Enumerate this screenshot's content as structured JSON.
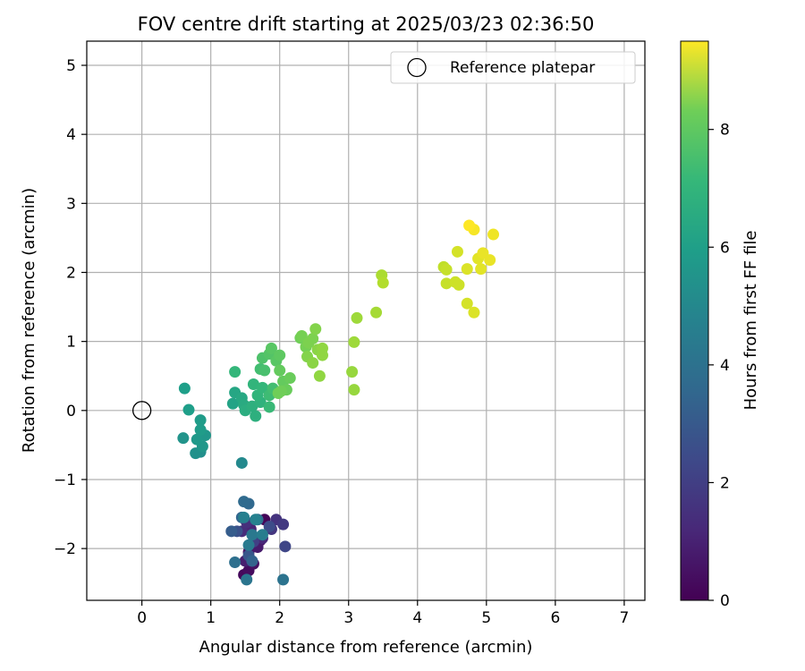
{
  "chart_data": {
    "type": "scatter",
    "title": "FOV centre drift starting at 2025/03/23 02:36:50",
    "xlabel": "Angular distance from reference (arcmin)",
    "ylabel": "Rotation from reference (arcmin)",
    "xlim": [
      -0.8,
      7.3
    ],
    "ylim": [
      -2.75,
      5.35
    ],
    "xticks": [
      0,
      1,
      2,
      3,
      4,
      5,
      6,
      7
    ],
    "xtick_labels": [
      "0",
      "1",
      "2",
      "3",
      "4",
      "5",
      "6",
      "7"
    ],
    "yticks": [
      -2,
      -1,
      0,
      1,
      2,
      3,
      4,
      5
    ],
    "ytick_labels": [
      "−2",
      "−1",
      "0",
      "1",
      "2",
      "3",
      "4",
      "5"
    ],
    "grid": true,
    "legend": {
      "position": "top-right",
      "entries": [
        "Reference platepar"
      ]
    },
    "reference_point": {
      "name": "Reference platepar",
      "x": 0,
      "y": 0
    },
    "colorbar": {
      "label": "Hours from first FF file",
      "colormap": "viridis",
      "range": [
        0,
        9.5
      ],
      "ticks": [
        0,
        2,
        4,
        6,
        8
      ],
      "tick_labels": [
        "0",
        "2",
        "4",
        "6",
        "8"
      ]
    },
    "points": [
      {
        "x": 1.78,
        "y": -1.58,
        "c": 0.1
      },
      {
        "x": 1.48,
        "y": -2.38,
        "c": 0.2
      },
      {
        "x": 1.55,
        "y": -2.32,
        "c": 0.3
      },
      {
        "x": 1.62,
        "y": -2.22,
        "c": 0.4
      },
      {
        "x": 1.72,
        "y": -1.88,
        "c": 0.5
      },
      {
        "x": 1.55,
        "y": -2.05,
        "c": 0.6
      },
      {
        "x": 1.68,
        "y": -1.98,
        "c": 0.7
      },
      {
        "x": 1.5,
        "y": -2.18,
        "c": 0.8
      },
      {
        "x": 1.58,
        "y": -1.72,
        "c": 1.0
      },
      {
        "x": 1.75,
        "y": -1.85,
        "c": 1.1
      },
      {
        "x": 1.45,
        "y": -1.75,
        "c": 1.2
      },
      {
        "x": 1.52,
        "y": -1.62,
        "c": 1.3
      },
      {
        "x": 1.95,
        "y": -1.58,
        "c": 1.4
      },
      {
        "x": 1.88,
        "y": -1.72,
        "c": 1.5
      },
      {
        "x": 2.05,
        "y": -1.65,
        "c": 1.6
      },
      {
        "x": 1.62,
        "y": -1.9,
        "c": 1.8
      },
      {
        "x": 2.08,
        "y": -1.97,
        "c": 2.0
      },
      {
        "x": 1.85,
        "y": -1.68,
        "c": 2.2
      },
      {
        "x": 1.38,
        "y": -1.75,
        "c": 2.4
      },
      {
        "x": 1.55,
        "y": -2.1,
        "c": 2.6
      },
      {
        "x": 1.3,
        "y": -1.75,
        "c": 2.8
      },
      {
        "x": 1.6,
        "y": -2.18,
        "c": 3.0
      },
      {
        "x": 1.45,
        "y": -1.55,
        "c": 3.1
      },
      {
        "x": 1.55,
        "y": -1.35,
        "c": 3.2
      },
      {
        "x": 1.48,
        "y": -1.32,
        "c": 3.3
      },
      {
        "x": 1.68,
        "y": -1.58,
        "c": 3.4
      },
      {
        "x": 1.35,
        "y": -2.2,
        "c": 3.5
      },
      {
        "x": 2.05,
        "y": -2.45,
        "c": 3.6
      },
      {
        "x": 1.52,
        "y": -2.45,
        "c": 3.7
      },
      {
        "x": 1.6,
        "y": -1.8,
        "c": 3.8
      },
      {
        "x": 1.55,
        "y": -1.95,
        "c": 3.9
      },
      {
        "x": 1.75,
        "y": -1.8,
        "c": 4.0
      },
      {
        "x": 1.48,
        "y": -1.55,
        "c": 4.1
      },
      {
        "x": 1.65,
        "y": -1.58,
        "c": 4.2
      },
      {
        "x": 1.45,
        "y": -0.76,
        "c": 4.5
      },
      {
        "x": 0.85,
        "y": -0.6,
        "c": 4.7
      },
      {
        "x": 0.78,
        "y": -0.62,
        "c": 4.8
      },
      {
        "x": 0.6,
        "y": -0.4,
        "c": 4.9
      },
      {
        "x": 0.88,
        "y": -0.52,
        "c": 5.0
      },
      {
        "x": 0.92,
        "y": -0.36,
        "c": 5.0
      },
      {
        "x": 0.8,
        "y": -0.42,
        "c": 5.1
      },
      {
        "x": 0.85,
        "y": -0.28,
        "c": 5.2
      },
      {
        "x": 0.85,
        "y": -0.14,
        "c": 5.2
      },
      {
        "x": 0.68,
        "y": 0.01,
        "c": 5.3
      },
      {
        "x": 0.62,
        "y": 0.32,
        "c": 5.3
      },
      {
        "x": 1.32,
        "y": 0.1,
        "c": 5.5
      },
      {
        "x": 1.35,
        "y": 0.26,
        "c": 5.6
      },
      {
        "x": 1.45,
        "y": 0.18,
        "c": 5.7
      },
      {
        "x": 1.48,
        "y": 0.08,
        "c": 5.8
      },
      {
        "x": 1.5,
        "y": 0.0,
        "c": 5.9
      },
      {
        "x": 1.65,
        "y": -0.08,
        "c": 6.0
      },
      {
        "x": 1.6,
        "y": 0.06,
        "c": 6.0
      },
      {
        "x": 1.72,
        "y": 0.12,
        "c": 6.1
      },
      {
        "x": 1.62,
        "y": 0.38,
        "c": 6.2
      },
      {
        "x": 1.68,
        "y": 0.22,
        "c": 6.2
      },
      {
        "x": 1.75,
        "y": 0.33,
        "c": 6.3
      },
      {
        "x": 1.85,
        "y": 0.05,
        "c": 6.4
      },
      {
        "x": 1.85,
        "y": 0.22,
        "c": 6.5
      },
      {
        "x": 1.9,
        "y": 0.32,
        "c": 6.6
      },
      {
        "x": 1.35,
        "y": 0.56,
        "c": 6.3
      },
      {
        "x": 1.72,
        "y": 0.6,
        "c": 6.6
      },
      {
        "x": 1.78,
        "y": 0.58,
        "c": 6.7
      },
      {
        "x": 1.75,
        "y": 0.76,
        "c": 6.8
      },
      {
        "x": 1.85,
        "y": 0.82,
        "c": 6.9
      },
      {
        "x": 1.88,
        "y": 0.9,
        "c": 7.0
      },
      {
        "x": 1.95,
        "y": 0.72,
        "c": 7.0
      },
      {
        "x": 2.0,
        "y": 0.8,
        "c": 7.1
      },
      {
        "x": 2.0,
        "y": 0.58,
        "c": 7.2
      },
      {
        "x": 2.05,
        "y": 0.42,
        "c": 7.2
      },
      {
        "x": 2.1,
        "y": 0.3,
        "c": 7.3
      },
      {
        "x": 2.15,
        "y": 0.47,
        "c": 7.3
      },
      {
        "x": 1.98,
        "y": 0.25,
        "c": 7.4
      },
      {
        "x": 2.02,
        "y": 0.28,
        "c": 7.4
      },
      {
        "x": 2.3,
        "y": 1.05,
        "c": 7.4
      },
      {
        "x": 2.32,
        "y": 1.08,
        "c": 7.5
      },
      {
        "x": 2.38,
        "y": 0.92,
        "c": 7.5
      },
      {
        "x": 2.42,
        "y": 0.98,
        "c": 7.6
      },
      {
        "x": 2.48,
        "y": 1.04,
        "c": 7.6
      },
      {
        "x": 2.52,
        "y": 1.18,
        "c": 7.7
      },
      {
        "x": 2.4,
        "y": 0.78,
        "c": 7.7
      },
      {
        "x": 2.48,
        "y": 0.69,
        "c": 7.8
      },
      {
        "x": 2.55,
        "y": 0.88,
        "c": 7.8
      },
      {
        "x": 2.62,
        "y": 0.8,
        "c": 7.9
      },
      {
        "x": 2.62,
        "y": 0.9,
        "c": 7.9
      },
      {
        "x": 2.58,
        "y": 0.5,
        "c": 7.9
      },
      {
        "x": 3.05,
        "y": 0.56,
        "c": 8.0
      },
      {
        "x": 3.08,
        "y": 0.3,
        "c": 8.0
      },
      {
        "x": 3.08,
        "y": 0.99,
        "c": 8.1
      },
      {
        "x": 3.12,
        "y": 1.34,
        "c": 8.1
      },
      {
        "x": 3.4,
        "y": 1.42,
        "c": 8.2
      },
      {
        "x": 3.48,
        "y": 1.96,
        "c": 8.3
      },
      {
        "x": 3.5,
        "y": 1.85,
        "c": 8.4
      },
      {
        "x": 4.38,
        "y": 2.08,
        "c": 8.6
      },
      {
        "x": 4.42,
        "y": 2.04,
        "c": 8.7
      },
      {
        "x": 4.42,
        "y": 1.84,
        "c": 8.7
      },
      {
        "x": 4.55,
        "y": 1.86,
        "c": 8.8
      },
      {
        "x": 4.6,
        "y": 1.82,
        "c": 8.8
      },
      {
        "x": 4.58,
        "y": 2.3,
        "c": 8.9
      },
      {
        "x": 4.72,
        "y": 1.55,
        "c": 8.9
      },
      {
        "x": 4.72,
        "y": 2.05,
        "c": 9.0
      },
      {
        "x": 4.82,
        "y": 1.42,
        "c": 9.0
      },
      {
        "x": 4.88,
        "y": 2.2,
        "c": 9.1
      },
      {
        "x": 4.92,
        "y": 2.05,
        "c": 9.1
      },
      {
        "x": 4.95,
        "y": 2.28,
        "c": 9.2
      },
      {
        "x": 5.05,
        "y": 2.18,
        "c": 9.2
      },
      {
        "x": 5.1,
        "y": 2.55,
        "c": 9.3
      },
      {
        "x": 4.82,
        "y": 2.62,
        "c": 9.4
      },
      {
        "x": 4.75,
        "y": 2.68,
        "c": 9.5
      }
    ]
  }
}
